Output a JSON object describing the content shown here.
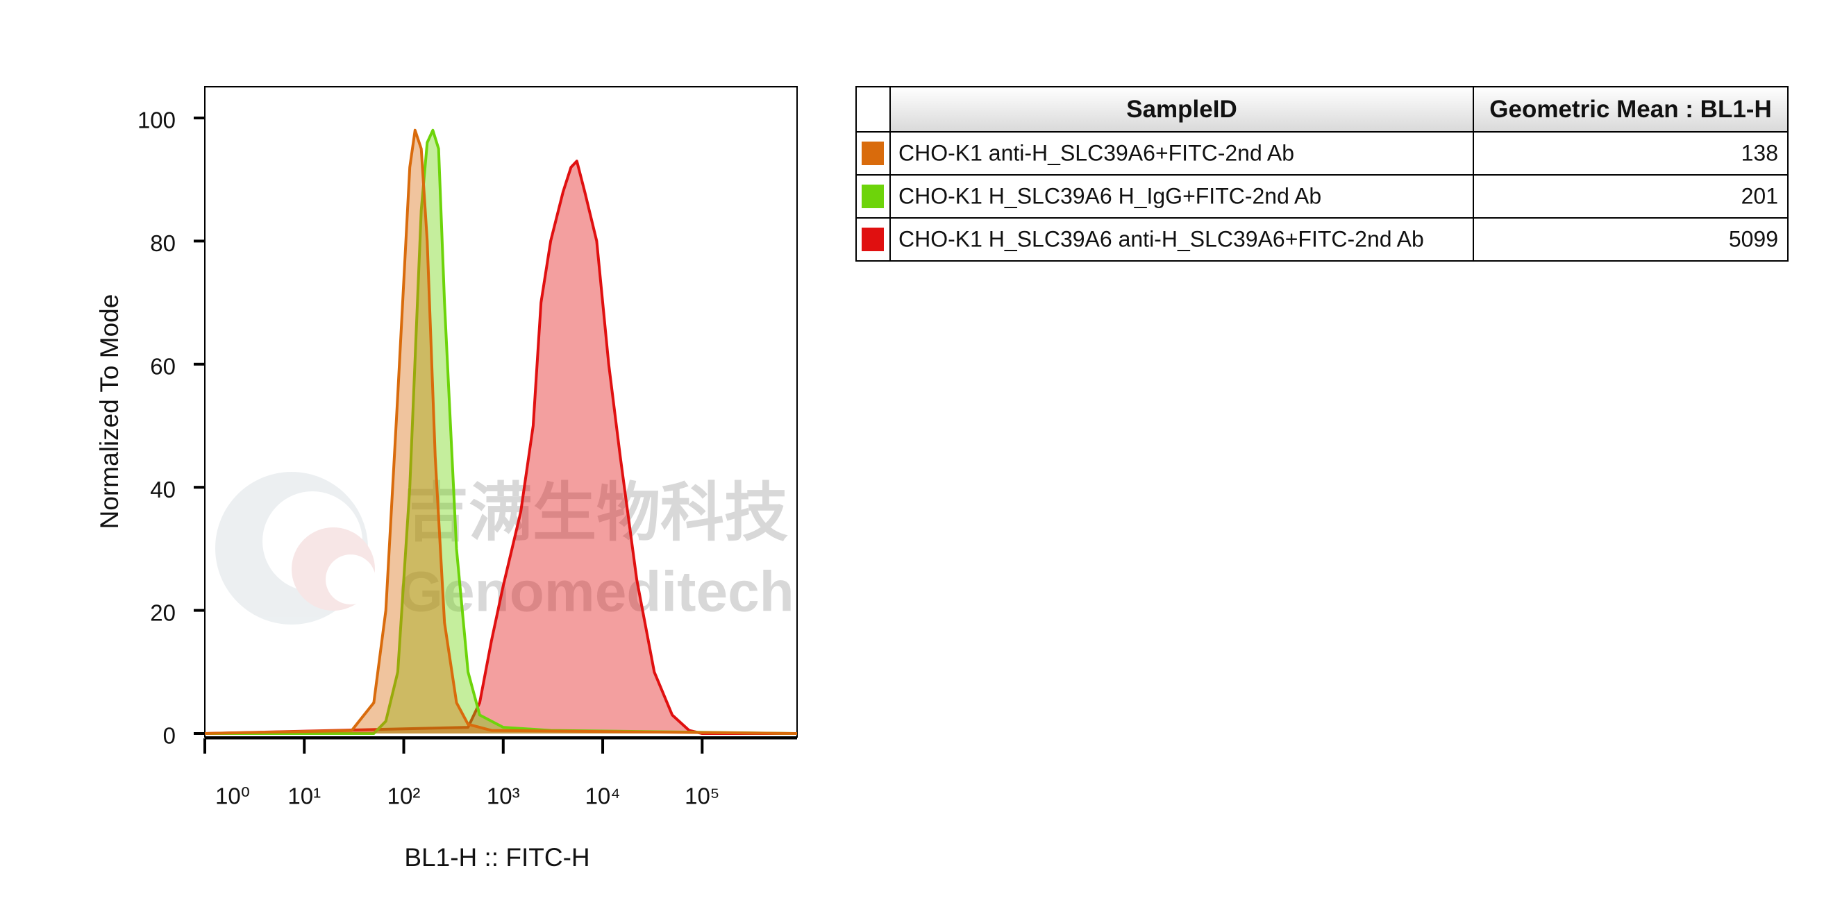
{
  "chart_data": {
    "type": "histogram-overlay",
    "xlabel": "BL1-H :: FITC-H",
    "ylabel": "Normalized To Mode",
    "xscale": "log",
    "xlim": [
      1,
      900000
    ],
    "xticks": [
      {
        "value": 1,
        "label": "10⁰"
      },
      {
        "value": 10,
        "label": "10¹"
      },
      {
        "value": 100,
        "label": "10²"
      },
      {
        "value": 1000,
        "label": "10³"
      },
      {
        "value": 10000,
        "label": "10⁴"
      },
      {
        "value": 100000,
        "label": "10⁵"
      }
    ],
    "ylim": [
      0,
      100
    ],
    "yticks": [
      0,
      20,
      40,
      60,
      80,
      100
    ],
    "watermark": [
      "吉满生物科技",
      "Genomeditech"
    ],
    "table_headers": [
      "SampleID",
      "Geometric Mean : BL1-H"
    ],
    "series": [
      {
        "name": "CHO-K1 anti-H_SLC39A6+FITC-2nd Ab",
        "color": "#d96b0c",
        "geometric_mean": 138,
        "x": [
          1,
          30,
          50,
          66,
          87,
          115,
          130,
          150,
          172,
          207,
          257,
          339,
          443,
          760,
          900000
        ],
        "values": [
          0,
          0.5,
          5,
          20,
          55,
          92,
          98,
          95,
          80,
          45,
          18,
          5,
          1.5,
          0.5,
          0
        ]
      },
      {
        "name": "CHO-K1 H_SLC39A6 H_IgG+FITC-2nd Ab",
        "color": "#6dd40a",
        "geometric_mean": 201,
        "x": [
          1,
          50,
          66,
          87,
          115,
          150,
          172,
          196,
          224,
          257,
          339,
          443,
          580,
          1000,
          3000,
          900000
        ],
        "values": [
          0,
          0,
          2,
          10,
          40,
          85,
          96,
          98,
          95,
          70,
          30,
          10,
          3,
          1,
          0.5,
          0
        ]
      },
      {
        "name": "CHO-K1 H_SLC39A6 anti-H_SLC39A6+FITC-2nd Ab",
        "color": "#e01010",
        "geometric_mean": 5099,
        "x": [
          1,
          443,
          580,
          760,
          1000,
          1500,
          2000,
          2400,
          3000,
          4000,
          4800,
          5500,
          6600,
          8700,
          11500,
          15000,
          22000,
          33000,
          50000,
          74000,
          100000,
          900000
        ],
        "values": [
          0,
          1,
          5,
          15,
          24,
          36,
          50,
          70,
          80,
          88,
          92,
          93,
          88,
          80,
          60,
          45,
          25,
          10,
          3,
          0.5,
          0,
          0
        ]
      }
    ]
  }
}
